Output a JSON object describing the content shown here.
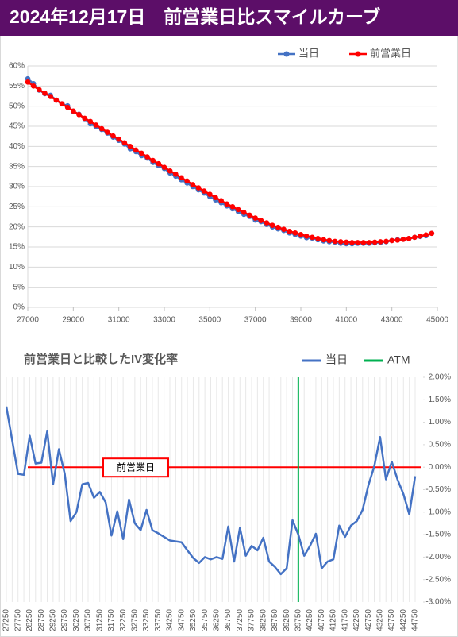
{
  "header": {
    "title": "2024年12月17日　前営業日比スマイルカーブ"
  },
  "chart_data": [
    {
      "type": "line",
      "x": [
        27000,
        27250,
        27500,
        27750,
        28000,
        28250,
        28500,
        28750,
        29000,
        29250,
        29500,
        29750,
        30000,
        30250,
        30500,
        30750,
        31000,
        31250,
        31500,
        31750,
        32000,
        32250,
        32500,
        32750,
        33000,
        33250,
        33500,
        33750,
        34000,
        34250,
        34500,
        34750,
        35000,
        35250,
        35500,
        35750,
        36000,
        36250,
        36500,
        36750,
        37000,
        37250,
        37500,
        37750,
        38000,
        38250,
        38500,
        38750,
        39000,
        39250,
        39500,
        39750,
        40000,
        40250,
        40500,
        40750,
        41000,
        41250,
        41500,
        41750,
        42000,
        42250,
        42500,
        42750,
        43000,
        43250,
        43500,
        43750,
        44000,
        44250,
        44500,
        44750
      ],
      "series": [
        {
          "name": "当日",
          "color": "#4472c4",
          "values": [
            56.8,
            55.6,
            54.0,
            53.1,
            52.7,
            51.5,
            50.6,
            50.1,
            48.6,
            48.0,
            46.9,
            45.6,
            44.9,
            44.2,
            43.3,
            42.3,
            41.5,
            40.6,
            39.4,
            38.7,
            37.7,
            37.1,
            36.0,
            35.2,
            34.5,
            33.4,
            32.6,
            31.7,
            30.9,
            30.0,
            29.2,
            28.4,
            27.5,
            26.7,
            26.0,
            25.2,
            24.5,
            23.8,
            23.1,
            22.6,
            21.7,
            21.3,
            20.6,
            20.0,
            19.5,
            19.1,
            18.5,
            18.1,
            17.7,
            17.3,
            17.2,
            16.8,
            16.5,
            16.3,
            16.2,
            15.9,
            15.8,
            15.8,
            15.9,
            15.9,
            15.9,
            16.0,
            16.1,
            16.3,
            16.6,
            16.8,
            16.9,
            17.1,
            17.4,
            17.6,
            17.8,
            18.4
          ]
        },
        {
          "name": "前営業日",
          "color": "#ff0000",
          "values": [
            56.0,
            55.0,
            54.1,
            53.2,
            52.4,
            51.5,
            50.6,
            49.7,
            48.8,
            47.9,
            47.0,
            46.2,
            45.3,
            44.4,
            43.5,
            42.6,
            41.8,
            40.9,
            40.0,
            39.1,
            38.3,
            37.4,
            36.5,
            35.7,
            34.8,
            33.9,
            33.1,
            32.2,
            31.4,
            30.5,
            29.7,
            28.9,
            28.1,
            27.3,
            26.5,
            25.7,
            25.0,
            24.3,
            23.6,
            22.9,
            22.2,
            21.6,
            21.0,
            20.4,
            19.9,
            19.4,
            18.9,
            18.5,
            18.1,
            17.7,
            17.4,
            17.1,
            16.8,
            16.6,
            16.4,
            16.3,
            16.2,
            16.1,
            16.1,
            16.1,
            16.1,
            16.2,
            16.3,
            16.4,
            16.6,
            16.7,
            16.9,
            17.1,
            17.4,
            17.7,
            18.0,
            18.4
          ]
        }
      ],
      "xlim": [
        27000,
        45000
      ],
      "xticks": [
        27000,
        29000,
        31000,
        33000,
        35000,
        37000,
        39000,
        41000,
        43000,
        45000
      ],
      "ylim": [
        0,
        60
      ],
      "yticks": [
        {
          "value": 0,
          "label": "0%"
        },
        {
          "value": 5,
          "label": "5%"
        },
        {
          "value": 10,
          "label": "10%"
        },
        {
          "value": 15,
          "label": "15%"
        },
        {
          "value": 20,
          "label": "20%"
        },
        {
          "value": 25,
          "label": "25%"
        },
        {
          "value": 30,
          "label": "30%"
        },
        {
          "value": 35,
          "label": "35%"
        },
        {
          "value": 40,
          "label": "40%"
        },
        {
          "value": 45,
          "label": "45%"
        },
        {
          "value": 50,
          "label": "50%"
        },
        {
          "value": 55,
          "label": "55%"
        },
        {
          "value": 60,
          "label": "60%"
        }
      ],
      "grid": true,
      "legend": "top"
    },
    {
      "type": "line",
      "title": "前営業日と比較したIV変化率",
      "categories": [
        27250,
        null,
        27750,
        null,
        28250,
        null,
        28750,
        null,
        29250,
        null,
        29750,
        null,
        30250,
        null,
        30750,
        null,
        31250,
        null,
        31750,
        null,
        32250,
        null,
        32750,
        null,
        33250,
        null,
        33750,
        null,
        34250,
        null,
        34750,
        null,
        35250,
        null,
        35750,
        null,
        36250,
        null,
        36750,
        null,
        37250,
        null,
        37750,
        null,
        38250,
        null,
        38750,
        null,
        39250,
        null,
        39750,
        null,
        40250,
        null,
        40750,
        null,
        41250,
        null,
        41750,
        null,
        42250,
        null,
        42750,
        null,
        43250,
        null,
        43750,
        null,
        44250,
        null,
        44750
      ],
      "series": [
        {
          "name": "当日",
          "color": "#4472c4",
          "values": [
            1.35,
            0.6,
            -0.15,
            -0.17,
            0.7,
            0.08,
            0.1,
            0.8,
            -0.38,
            0.4,
            -0.15,
            -1.2,
            -1.0,
            -0.38,
            -0.35,
            -0.68,
            -0.55,
            -0.78,
            -1.52,
            -0.98,
            -1.6,
            -0.72,
            -1.25,
            -1.4,
            -0.95,
            -1.4,
            -1.47,
            -1.55,
            -1.63,
            -1.65,
            -1.67,
            -1.85,
            -2.02,
            -2.13,
            -2.0,
            -2.05,
            -2.0,
            -2.04,
            -1.32,
            -2.1,
            -1.35,
            -1.97,
            -1.75,
            -1.85,
            -1.57,
            -2.1,
            -2.22,
            -2.38,
            -2.25,
            -1.18,
            -1.5,
            -1.97,
            -1.75,
            -1.48,
            -2.25,
            -2.1,
            -2.05,
            -1.3,
            -1.55,
            -1.3,
            -1.2,
            -0.95,
            -0.4,
            0.02,
            0.67,
            -0.27,
            0.12,
            -0.28,
            -0.6,
            -1.05,
            -0.2
          ]
        }
      ],
      "atm": {
        "name": "ATM",
        "value": 39750,
        "color": "#00b050"
      },
      "reference_line": {
        "label": "前営業日",
        "value": 0,
        "color": "#ff0000"
      },
      "ylim": [
        -3,
        2
      ],
      "yticks": [
        {
          "value": 2,
          "label": "2.00%"
        },
        {
          "value": 1.5,
          "label": "1.50%"
        },
        {
          "value": 1,
          "label": "1.00%"
        },
        {
          "value": 0.5,
          "label": "0.50%"
        },
        {
          "value": 0,
          "label": "0.00%"
        },
        {
          "value": -0.5,
          "label": "-0.50%"
        },
        {
          "value": -1,
          "label": "-1.00%"
        },
        {
          "value": -1.5,
          "label": "-1.50%"
        },
        {
          "value": -2,
          "label": "-2.00%"
        },
        {
          "value": -2.5,
          "label": "-2.50%"
        },
        {
          "value": -3,
          "label": "-3.00%"
        }
      ],
      "grid": "x",
      "legend": "top"
    }
  ]
}
